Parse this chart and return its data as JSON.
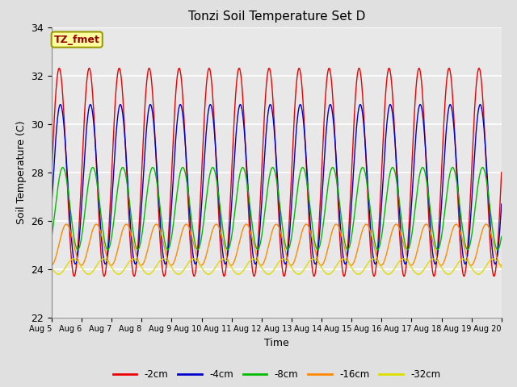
{
  "title": "Tonzi Soil Temperature Set D",
  "xlabel": "Time",
  "ylabel": "Soil Temperature (C)",
  "ylim": [
    22,
    34
  ],
  "background_color": "#e0e0e0",
  "plot_bg_color": "#e8e8e8",
  "grid_color": "#ffffff",
  "label_box_text": "TZ_fmet",
  "label_box_facecolor": "#ffffa0",
  "label_box_edgecolor": "#999900",
  "label_box_textcolor": "#990000",
  "series": [
    {
      "label": "-2cm",
      "color": "#ee0000",
      "amplitude": 4.3,
      "mean": 28.0,
      "phase": 0.0
    },
    {
      "label": "-4cm",
      "color": "#0000cc",
      "amplitude": 3.3,
      "mean": 27.5,
      "phase": 0.25
    },
    {
      "label": "-8cm",
      "color": "#00bb00",
      "amplitude": 1.7,
      "mean": 26.5,
      "phase": 0.75
    },
    {
      "label": "-16cm",
      "color": "#ff8800",
      "amplitude": 0.85,
      "mean": 25.0,
      "phase": 1.5
    },
    {
      "label": "-32cm",
      "color": "#dddd00",
      "amplitude": 0.32,
      "mean": 24.1,
      "phase": 3.0
    }
  ],
  "xtick_labels": [
    "Aug 5",
    "Aug 6",
    "Aug 7",
    "Aug 8",
    "Aug 9",
    "Aug 10",
    "Aug 11",
    "Aug 12",
    "Aug 13",
    "Aug 14",
    "Aug 15",
    "Aug 16",
    "Aug 17",
    "Aug 18",
    "Aug 19",
    "Aug 20"
  ],
  "ytick_labels": [
    "22",
    "24",
    "26",
    "28",
    "30",
    "32",
    "34"
  ],
  "ytick_values": [
    22,
    24,
    26,
    28,
    30,
    32,
    34
  ]
}
